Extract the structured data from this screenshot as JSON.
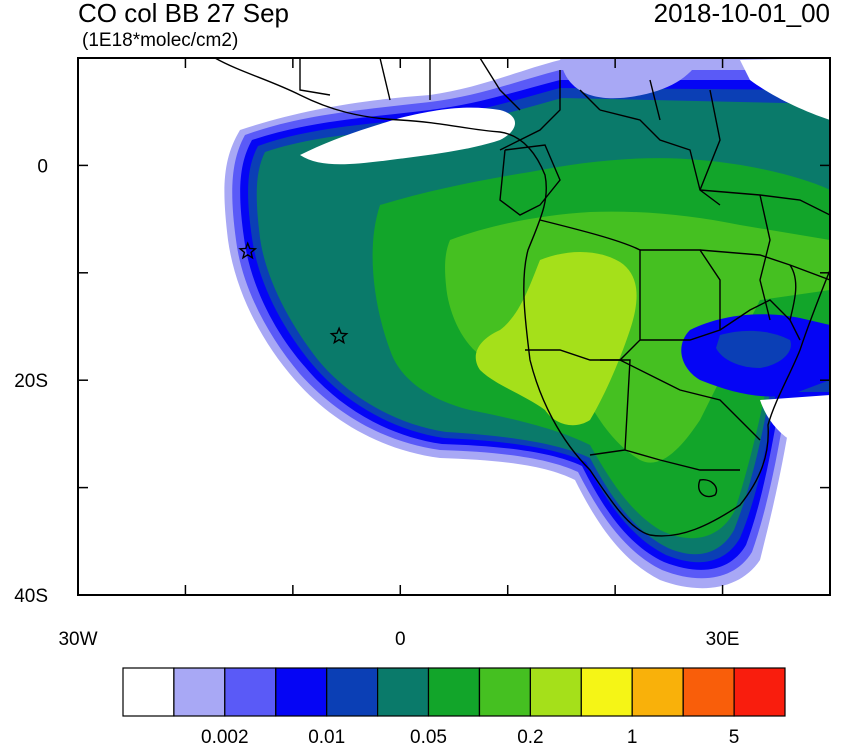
{
  "title_left": "CO col BB 27 Sep",
  "title_right": "2018-10-01_00",
  "units": "(1E18*molec/cm2)",
  "axes": {
    "y_ticks": [
      {
        "label": "0",
        "lat": 0
      },
      {
        "label": "20S",
        "lat": -20
      },
      {
        "label": "40S",
        "lat": -40
      }
    ],
    "x_ticks": [
      {
        "label": "30W",
        "lon": -30
      },
      {
        "label": "0",
        "lon": 0
      },
      {
        "label": "30E",
        "lon": 30
      }
    ]
  },
  "colorbar": {
    "colors": [
      "#ffffff",
      "#a8a8f5",
      "#5a5af7",
      "#0505f5",
      "#0b3fb5",
      "#0a7a6a",
      "#12a52a",
      "#45c021",
      "#a5e01a",
      "#f5f516",
      "#f9b10a",
      "#f95e0a",
      "#f91d0d"
    ],
    "labels": [
      "0.002",
      "0.01",
      "0.05",
      "0.2",
      "1",
      "5"
    ]
  },
  "markers": [
    {
      "name": "star-1",
      "lon": -14.2,
      "lat": -8.0
    },
    {
      "name": "star-2",
      "lon": -5.7,
      "lat": -15.9
    }
  ]
}
